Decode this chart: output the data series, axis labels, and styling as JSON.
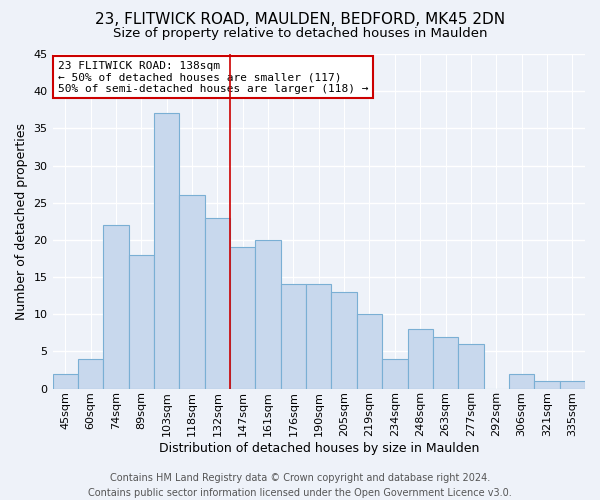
{
  "title": "23, FLITWICK ROAD, MAULDEN, BEDFORD, MK45 2DN",
  "subtitle": "Size of property relative to detached houses in Maulden",
  "xlabel": "Distribution of detached houses by size in Maulden",
  "ylabel": "Number of detached properties",
  "categories": [
    "45sqm",
    "60sqm",
    "74sqm",
    "89sqm",
    "103sqm",
    "118sqm",
    "132sqm",
    "147sqm",
    "161sqm",
    "176sqm",
    "190sqm",
    "205sqm",
    "219sqm",
    "234sqm",
    "248sqm",
    "263sqm",
    "277sqm",
    "292sqm",
    "306sqm",
    "321sqm",
    "335sqm"
  ],
  "values": [
    2,
    4,
    22,
    18,
    37,
    26,
    23,
    19,
    20,
    14,
    14,
    13,
    10,
    4,
    8,
    7,
    6,
    0,
    2,
    1,
    1
  ],
  "bar_color": "#c8d8ed",
  "bar_edge_color": "#7aafd4",
  "ylim": [
    0,
    45
  ],
  "yticks": [
    0,
    5,
    10,
    15,
    20,
    25,
    30,
    35,
    40,
    45
  ],
  "vline_color": "#cc0000",
  "vline_index": 6.5,
  "annotation_text": "23 FLITWICK ROAD: 138sqm\n← 50% of detached houses are smaller (117)\n50% of semi-detached houses are larger (118) →",
  "annotation_box_color": "#ffffff",
  "annotation_box_edge_color": "#cc0000",
  "footer_line1": "Contains HM Land Registry data © Crown copyright and database right 2024.",
  "footer_line2": "Contains public sector information licensed under the Open Government Licence v3.0.",
  "background_color": "#eef2f9",
  "grid_color": "#ffffff",
  "title_fontsize": 11,
  "subtitle_fontsize": 9.5,
  "axis_label_fontsize": 9,
  "tick_fontsize": 8,
  "annotation_fontsize": 8,
  "footer_fontsize": 7
}
